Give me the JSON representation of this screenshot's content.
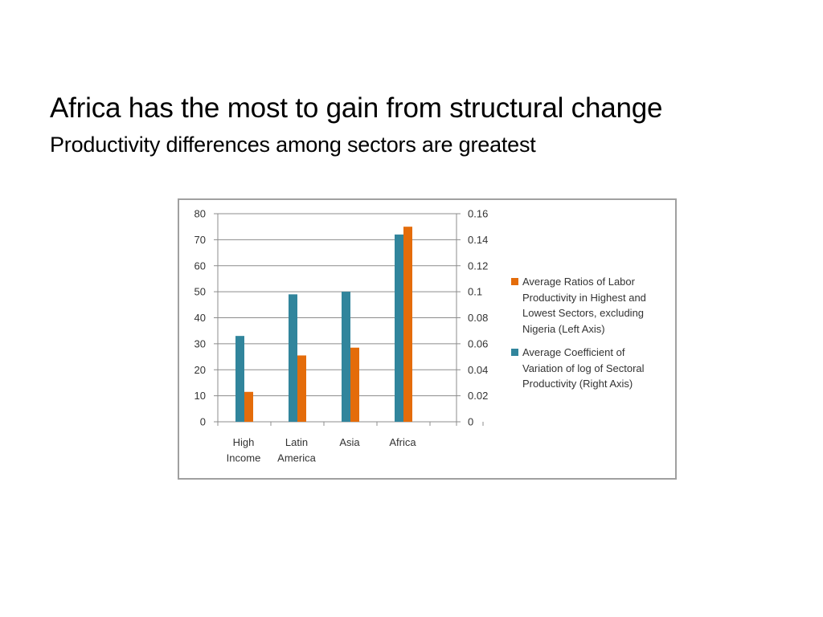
{
  "slide": {
    "title": "Africa has the most to gain from structural change",
    "subtitle": "Productivity differences among sectors are greatest"
  },
  "chart_data": {
    "type": "bar",
    "categories": [
      [
        "High",
        "Income"
      ],
      [
        "Latin",
        "America"
      ],
      [
        "Asia"
      ],
      [
        "Africa"
      ]
    ],
    "series": [
      {
        "name": "Average Coefficient of Variation of log of Sectoral Productivity (Right Axis)",
        "axis": "right",
        "color": "#31859c",
        "values": [
          0.066,
          0.098,
          0.1,
          0.144
        ]
      },
      {
        "name": "Average Ratios of Labor Productivity in Highest and Lowest Sectors, excluding Nigeria (Left Axis)",
        "axis": "left",
        "color": "#e46c0a",
        "values": [
          11.5,
          25.5,
          28.5,
          75
        ]
      }
    ],
    "left_axis": {
      "min": 0,
      "max": 80,
      "ticks": [
        "0",
        "10",
        "20",
        "30",
        "40",
        "50",
        "60",
        "70",
        "80"
      ]
    },
    "right_axis": {
      "min": 0,
      "max": 0.16,
      "ticks": [
        "0",
        "0.02",
        "0.04",
        "0.06",
        "0.08",
        "0.1",
        "0.12",
        "0.14",
        "0.16"
      ]
    },
    "grid": true,
    "legend_position": "right",
    "legend": [
      {
        "color": "#e46c0a",
        "lines": [
          "Average Ratios of Labor",
          "Productivity in Highest and",
          "Lowest Sectors, excluding",
          "Nigeria (Left Axis)"
        ]
      },
      {
        "color": "#31859c",
        "lines": [
          "Average Coefficient of",
          "Variation of log of Sectoral",
          "Productivity (Right Axis)"
        ]
      }
    ]
  }
}
